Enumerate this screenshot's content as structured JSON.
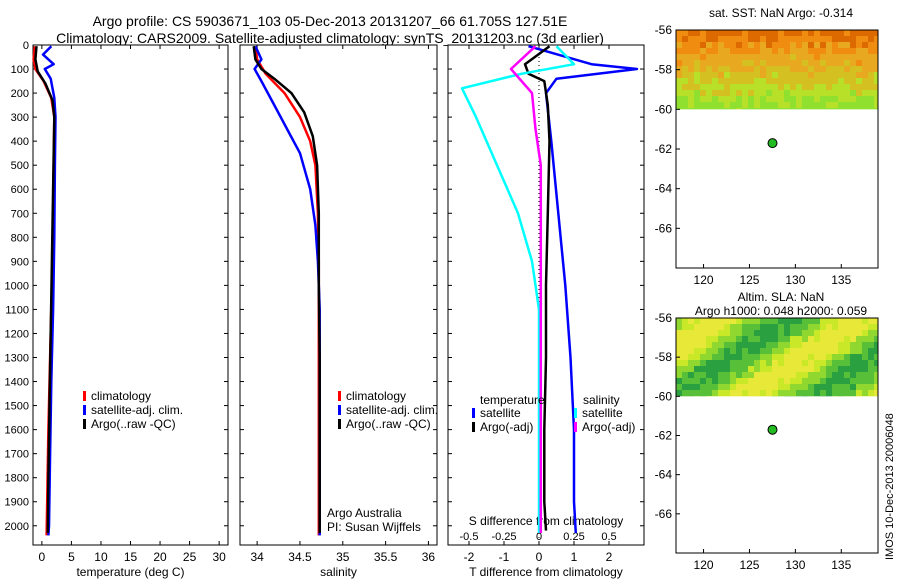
{
  "header": {
    "title_line1": "Argo profile: CS 5903671_103 05-Dec-2013 20131207_66 61.705S 127.51E",
    "title_line2": "Climatology: CARS2009. Satellite-adjusted climatology: synTS_20131203.nc (3d earlier)"
  },
  "credit": "IMOS 10-Dec-2013 20006048",
  "colors": {
    "climatology": "#ff0000",
    "satellite": "#0000ff",
    "argo": "#000000",
    "sal_satellite": "#00ffff",
    "sal_argo": "#ff00ff",
    "float_marker": "#22bb22"
  },
  "chart_data": [
    {
      "id": "temperature",
      "type": "line",
      "xlabel": "temperature (deg C)",
      "ylabel": "",
      "xlim": [
        -1.5,
        31.5
      ],
      "ylim": [
        2080,
        0
      ],
      "xticks": [
        0,
        5,
        10,
        15,
        20,
        25,
        30
      ],
      "yticks": [
        0,
        100,
        200,
        300,
        400,
        500,
        600,
        700,
        800,
        900,
        1000,
        1100,
        1200,
        1300,
        1400,
        1500,
        1600,
        1700,
        1800,
        1900,
        2000
      ],
      "legend": {
        "entries": [
          "climatology",
          "satellite-adj. clim.",
          "Argo(..raw -QC)"
        ]
      },
      "series": [
        {
          "name": "climatology",
          "color": "#ff0000",
          "points": [
            [
              -1.2,
              5
            ],
            [
              -1.4,
              60
            ],
            [
              -1.1,
              100
            ],
            [
              0.3,
              150
            ],
            [
              1.6,
              220
            ],
            [
              2.1,
              300
            ],
            [
              2.0,
              500
            ],
            [
              1.9,
              700
            ],
            [
              1.7,
              1000
            ],
            [
              1.4,
              1300
            ],
            [
              1.1,
              1600
            ],
            [
              0.9,
              1900
            ],
            [
              0.8,
              2040
            ]
          ]
        },
        {
          "name": "satellite-adj. clim.",
          "color": "#0000ff",
          "points": [
            [
              1.6,
              5
            ],
            [
              0.2,
              40
            ],
            [
              2.0,
              80
            ],
            [
              0.5,
              100
            ],
            [
              1.5,
              140
            ],
            [
              2.1,
              220
            ],
            [
              2.3,
              300
            ],
            [
              2.2,
              500
            ],
            [
              2.1,
              800
            ],
            [
              1.9,
              1100
            ],
            [
              1.6,
              1400
            ],
            [
              1.4,
              1700
            ],
            [
              1.2,
              2000
            ],
            [
              1.1,
              2040
            ]
          ]
        },
        {
          "name": "Argo(..raw -QC)",
          "color": "#000000",
          "points": [
            [
              -0.9,
              5
            ],
            [
              -1.1,
              60
            ],
            [
              -0.7,
              110
            ],
            [
              0.6,
              160
            ],
            [
              1.8,
              230
            ],
            [
              2.1,
              300
            ],
            [
              1.9,
              600
            ],
            [
              1.7,
              900
            ],
            [
              1.5,
              1200
            ],
            [
              1.3,
              1500
            ],
            [
              1.1,
              1800
            ],
            [
              1.0,
              2030
            ]
          ]
        }
      ]
    },
    {
      "id": "salinity",
      "type": "line",
      "xlabel": "salinity",
      "ylabel": "",
      "xlim": [
        33.8,
        36.1
      ],
      "ylim": [
        2080,
        0
      ],
      "xticks": [
        34,
        34.5,
        35,
        35.5,
        36
      ],
      "legend": {
        "entries": [
          "climatology",
          "satellite-adj. clim.",
          "Argo(..raw -QC)"
        ]
      },
      "annotations": [
        "Argo Australia",
        "PI: Susan Wijffels"
      ],
      "series": [
        {
          "name": "climatology",
          "color": "#ff0000",
          "points": [
            [
              33.98,
              5
            ],
            [
              34.0,
              60
            ],
            [
              34.1,
              120
            ],
            [
              34.32,
              200
            ],
            [
              34.5,
              300
            ],
            [
              34.62,
              400
            ],
            [
              34.68,
              500
            ],
            [
              34.71,
              700
            ],
            [
              34.72,
              900
            ],
            [
              34.72,
              1200
            ],
            [
              34.72,
              1500
            ],
            [
              34.72,
              1800
            ],
            [
              34.72,
              2040
            ]
          ]
        },
        {
          "name": "satellite-adj. clim.",
          "color": "#0000ff",
          "points": [
            [
              33.98,
              5
            ],
            [
              34.05,
              60
            ],
            [
              33.97,
              100
            ],
            [
              34.05,
              150
            ],
            [
              34.2,
              250
            ],
            [
              34.35,
              350
            ],
            [
              34.5,
              450
            ],
            [
              34.62,
              600
            ],
            [
              34.68,
              750
            ],
            [
              34.71,
              900
            ],
            [
              34.73,
              1100
            ],
            [
              34.73,
              1400
            ],
            [
              34.73,
              1700
            ],
            [
              34.73,
              2040
            ]
          ]
        },
        {
          "name": "Argo(..raw -QC)",
          "color": "#000000",
          "points": [
            [
              33.96,
              5
            ],
            [
              33.98,
              60
            ],
            [
              34.05,
              100
            ],
            [
              34.2,
              140
            ],
            [
              34.4,
              200
            ],
            [
              34.55,
              280
            ],
            [
              34.65,
              380
            ],
            [
              34.7,
              500
            ],
            [
              34.72,
              700
            ],
            [
              34.72,
              1000
            ],
            [
              34.73,
              1300
            ],
            [
              34.73,
              1600
            ],
            [
              34.73,
              1900
            ],
            [
              34.73,
              2030
            ]
          ]
        }
      ]
    },
    {
      "id": "difference",
      "type": "line",
      "xlabel": "T difference from climatology",
      "xlabel_top": "S difference from climatology",
      "ylabel": "",
      "xlim": [
        -2.6,
        3.0
      ],
      "ylim": [
        2080,
        0
      ],
      "xticks": [
        -2,
        -1,
        0,
        1,
        2
      ],
      "s_xticks": [
        "-0.5",
        "-0.25",
        "0",
        "0.25",
        "0.5"
      ],
      "legend": {
        "temperature_title": "temperature",
        "salinity_title": "salinity",
        "temperature_entries": [
          "satellite",
          "Argo(-adj)"
        ],
        "salinity_entries": [
          "satellite",
          "Argo(-adj)"
        ]
      },
      "series": [
        {
          "name": "temperature satellite",
          "color": "#0000ff",
          "points": [
            [
              -0.3,
              5
            ],
            [
              1.5,
              80
            ],
            [
              2.8,
              100
            ],
            [
              0.5,
              140
            ],
            [
              0.2,
              200
            ],
            [
              0.35,
              400
            ],
            [
              0.55,
              700
            ],
            [
              0.75,
              1000
            ],
            [
              0.9,
              1300
            ],
            [
              1.0,
              1600
            ],
            [
              1.0,
              1900
            ],
            [
              1.05,
              2030
            ]
          ]
        },
        {
          "name": "temperature Argo(-adj)",
          "color": "#000000",
          "points": [
            [
              0.3,
              5
            ],
            [
              -0.4,
              80
            ],
            [
              -0.3,
              120
            ],
            [
              0.15,
              150
            ],
            [
              0.25,
              250
            ],
            [
              0.3,
              400
            ],
            [
              0.25,
              700
            ],
            [
              0.2,
              1000
            ],
            [
              0.2,
              1300
            ],
            [
              0.15,
              1600
            ],
            [
              0.15,
              1900
            ],
            [
              0.2,
              2020
            ]
          ]
        },
        {
          "name": "salinity satellite",
          "color": "#00ffff",
          "points": [
            [
              0.5,
              5
            ],
            [
              1.0,
              80
            ],
            [
              -0.5,
              120
            ],
            [
              -2.2,
              180
            ],
            [
              -1.8,
              300
            ],
            [
              -1.2,
              500
            ],
            [
              -0.6,
              700
            ],
            [
              -0.2,
              900
            ],
            [
              0.0,
              1100
            ],
            [
              0.0,
              1500
            ],
            [
              0.0,
              2030
            ]
          ]
        },
        {
          "name": "salinity Argo(-adj)",
          "color": "#ff00ff",
          "points": [
            [
              -0.1,
              5
            ],
            [
              -0.8,
              100
            ],
            [
              -0.2,
              200
            ],
            [
              -0.1,
              350
            ],
            [
              0.05,
              500
            ],
            [
              0.05,
              800
            ],
            [
              0.05,
              1100
            ],
            [
              0.05,
              1500
            ],
            [
              0.05,
              2030
            ]
          ]
        }
      ]
    }
  ],
  "maps": [
    {
      "id": "sst-map",
      "title": "sat. SST: NaN Argo: -0.314",
      "xlim": [
        117,
        139
      ],
      "ylim": [
        -68,
        -56
      ],
      "xticks": [
        120,
        125,
        130,
        135
      ],
      "yticks": [
        -56,
        -58,
        -60,
        -62,
        -64,
        -66
      ],
      "field_lat_range": [
        -60,
        -56
      ],
      "field_colors": [
        "#dd6a00",
        "#f08c10",
        "#e8a820",
        "#d4c020",
        "#b8e028",
        "#90e030"
      ],
      "float_position": [
        127.51,
        -61.705
      ]
    },
    {
      "id": "sla-map",
      "title_line1": "Altim. SLA: NaN",
      "title_line2": "Argo h1000: 0.048 h2000: 0.059",
      "xlim": [
        117,
        139
      ],
      "ylim": [
        -68,
        -56
      ],
      "xticks": [
        120,
        125,
        130,
        135
      ],
      "yticks": [
        -56,
        -58,
        -60,
        -62,
        -64,
        -66
      ],
      "field_lat_range": [
        -60,
        -56
      ],
      "field_colors": [
        "#2aa040",
        "#58c038",
        "#90d830",
        "#c8e828",
        "#e8e838"
      ],
      "float_position": [
        127.51,
        -61.705
      ]
    }
  ]
}
